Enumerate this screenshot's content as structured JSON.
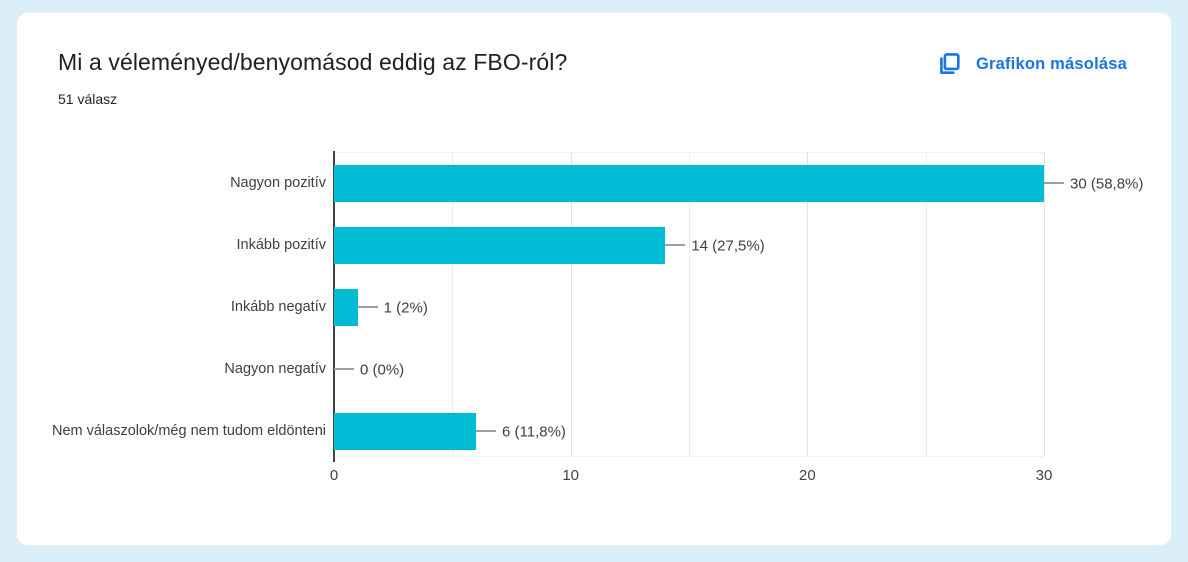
{
  "page": {
    "background_color": "#daeef7",
    "card_color": "#ffffff"
  },
  "header": {
    "title": "Mi a véleményed/benyomásod eddig az FBO-ról?",
    "responses_count": "51 válasz",
    "copy_button": {
      "label": "Grafikon másolása",
      "icon": "copy-icon",
      "color": "#1a73e8"
    }
  },
  "chart_data": {
    "type": "bar",
    "orientation": "horizontal",
    "title": "Mi a véleményed/benyomásod eddig az FBO-ról?",
    "subtitle": "51 válasz",
    "categories": [
      "Nagyon pozitív",
      "Inkább pozitív",
      "Inkább negatív",
      "Nagyon negatív",
      "Nem válaszolok/még nem tudom eldönteni"
    ],
    "values": [
      30,
      14,
      1,
      0,
      6
    ],
    "value_labels": [
      "30 (58,8%)",
      "14 (27,5%)",
      "1 (2%)",
      "0 (0%)",
      "6 (11,8%)"
    ],
    "bar_color": "#00bcd4",
    "xlim": [
      0,
      30
    ],
    "x_ticks": [
      "0",
      "10",
      "20",
      "30"
    ],
    "x_tick_values": [
      0,
      10,
      20,
      30
    ],
    "x_minor_gridline_step": 5,
    "grid": true,
    "legend": "none"
  }
}
